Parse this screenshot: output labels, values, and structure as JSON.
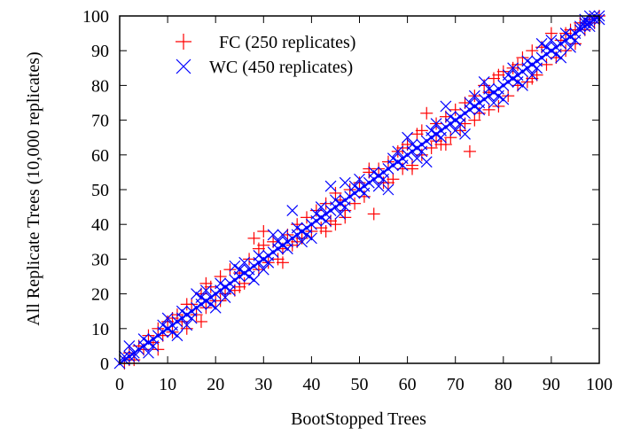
{
  "chart_data": {
    "type": "scatter",
    "title": "",
    "xlabel": "BootStopped Trees",
    "ylabel": "All Replicate Trees (10,000 replicates)",
    "xlim": [
      0,
      100
    ],
    "ylim": [
      0,
      100
    ],
    "xticks": [
      "0",
      "10",
      "20",
      "30",
      "40",
      "50",
      "60",
      "70",
      "80",
      "90",
      "100"
    ],
    "yticks": [
      "0",
      "10",
      "20",
      "30",
      "40",
      "50",
      "60",
      "70",
      "80",
      "90",
      "100"
    ],
    "grid": false,
    "legend_position": "top-left",
    "reference_line": {
      "type": "y=x",
      "color": "#00bcd4",
      "style": "dashed"
    },
    "series": [
      {
        "name": "FC (250 replicates)",
        "marker": "plus",
        "color": "#ff0000",
        "points": [
          [
            1,
            0
          ],
          [
            2,
            3
          ],
          [
            3,
            1
          ],
          [
            4,
            5
          ],
          [
            5,
            4
          ],
          [
            6,
            8
          ],
          [
            7,
            6
          ],
          [
            8,
            10
          ],
          [
            9,
            8
          ],
          [
            10,
            12
          ],
          [
            11,
            9
          ],
          [
            12,
            14
          ],
          [
            13,
            12
          ],
          [
            14,
            10
          ],
          [
            15,
            17
          ],
          [
            16,
            14
          ],
          [
            17,
            20
          ],
          [
            18,
            16
          ],
          [
            19,
            22
          ],
          [
            20,
            18
          ],
          [
            21,
            25
          ],
          [
            22,
            20
          ],
          [
            23,
            27
          ],
          [
            24,
            21
          ],
          [
            25,
            26
          ],
          [
            26,
            23
          ],
          [
            27,
            30
          ],
          [
            28,
            36
          ],
          [
            29,
            27
          ],
          [
            30,
            38
          ],
          [
            31,
            29
          ],
          [
            32,
            35
          ],
          [
            33,
            30
          ],
          [
            34,
            33
          ],
          [
            35,
            37
          ],
          [
            36,
            34
          ],
          [
            37,
            40
          ],
          [
            38,
            36
          ],
          [
            39,
            42
          ],
          [
            40,
            38
          ],
          [
            41,
            44
          ],
          [
            42,
            39
          ],
          [
            43,
            46
          ],
          [
            44,
            41
          ],
          [
            45,
            40
          ],
          [
            46,
            47
          ],
          [
            47,
            44
          ],
          [
            48,
            50
          ],
          [
            49,
            46
          ],
          [
            50,
            52
          ],
          [
            51,
            48
          ],
          [
            52,
            55
          ],
          [
            53,
            43
          ],
          [
            54,
            56
          ],
          [
            55,
            52
          ],
          [
            56,
            58
          ],
          [
            57,
            53
          ],
          [
            58,
            61
          ],
          [
            59,
            56
          ],
          [
            60,
            63
          ],
          [
            61,
            57
          ],
          [
            62,
            66
          ],
          [
            63,
            60
          ],
          [
            64,
            72
          ],
          [
            65,
            62
          ],
          [
            66,
            69
          ],
          [
            67,
            63
          ],
          [
            68,
            71
          ],
          [
            69,
            65
          ],
          [
            70,
            73
          ],
          [
            71,
            67
          ],
          [
            72,
            75
          ],
          [
            73,
            61
          ],
          [
            74,
            77
          ],
          [
            75,
            72
          ],
          [
            76,
            80
          ],
          [
            77,
            73
          ],
          [
            78,
            82
          ],
          [
            79,
            74
          ],
          [
            80,
            84
          ],
          [
            81,
            77
          ],
          [
            82,
            85
          ],
          [
            83,
            80
          ],
          [
            84,
            88
          ],
          [
            85,
            81
          ],
          [
            86,
            90
          ],
          [
            87,
            83
          ],
          [
            88,
            91
          ],
          [
            89,
            86
          ],
          [
            90,
            95
          ],
          [
            91,
            88
          ],
          [
            92,
            93
          ],
          [
            93,
            90
          ],
          [
            94,
            96
          ],
          [
            95,
            92
          ],
          [
            96,
            98
          ],
          [
            97,
            96
          ],
          [
            98,
            99
          ],
          [
            99,
            98
          ],
          [
            100,
            100
          ],
          [
            8,
            4
          ],
          [
            14,
            17
          ],
          [
            17,
            12
          ],
          [
            21,
            18
          ],
          [
            29,
            33
          ],
          [
            34,
            29
          ],
          [
            45,
            49
          ],
          [
            47,
            42
          ],
          [
            56,
            52
          ],
          [
            63,
            67
          ],
          [
            68,
            63
          ],
          [
            74,
            70
          ],
          [
            79,
            83
          ],
          [
            86,
            82
          ],
          [
            93,
            95
          ],
          [
            2,
            1
          ],
          [
            11,
            13
          ],
          [
            25,
            22
          ],
          [
            37,
            35
          ],
          [
            52,
            56
          ],
          [
            59,
            62
          ],
          [
            66,
            64
          ],
          [
            72,
            69
          ],
          [
            83,
            86
          ],
          [
            95,
            96
          ],
          [
            43,
            38
          ],
          [
            30,
            34
          ],
          [
            18,
            23
          ],
          [
            61,
            56
          ],
          [
            77,
            78
          ]
        ]
      },
      {
        "name": "WC (450 replicates)",
        "marker": "cross",
        "color": "#0000ff",
        "points": [
          [
            0,
            0
          ],
          [
            1,
            1
          ],
          [
            2,
            2
          ],
          [
            3,
            3
          ],
          [
            4,
            4
          ],
          [
            5,
            5
          ],
          [
            6,
            6
          ],
          [
            7,
            7
          ],
          [
            8,
            8
          ],
          [
            9,
            9
          ],
          [
            10,
            10
          ],
          [
            11,
            11
          ],
          [
            12,
            12
          ],
          [
            13,
            13
          ],
          [
            14,
            14
          ],
          [
            15,
            15
          ],
          [
            16,
            16
          ],
          [
            17,
            17
          ],
          [
            18,
            18
          ],
          [
            19,
            19
          ],
          [
            20,
            20
          ],
          [
            21,
            21
          ],
          [
            22,
            22
          ],
          [
            23,
            23
          ],
          [
            24,
            24
          ],
          [
            25,
            25
          ],
          [
            26,
            26
          ],
          [
            27,
            27
          ],
          [
            28,
            28
          ],
          [
            29,
            29
          ],
          [
            30,
            30
          ],
          [
            31,
            31
          ],
          [
            32,
            32
          ],
          [
            33,
            33
          ],
          [
            34,
            34
          ],
          [
            35,
            35
          ],
          [
            36,
            36
          ],
          [
            37,
            37
          ],
          [
            38,
            38
          ],
          [
            39,
            39
          ],
          [
            40,
            40
          ],
          [
            41,
            41
          ],
          [
            42,
            42
          ],
          [
            43,
            43
          ],
          [
            44,
            44
          ],
          [
            45,
            45
          ],
          [
            46,
            46
          ],
          [
            47,
            47
          ],
          [
            48,
            48
          ],
          [
            49,
            49
          ],
          [
            50,
            50
          ],
          [
            51,
            51
          ],
          [
            52,
            52
          ],
          [
            53,
            53
          ],
          [
            54,
            54
          ],
          [
            55,
            55
          ],
          [
            56,
            56
          ],
          [
            57,
            57
          ],
          [
            58,
            58
          ],
          [
            59,
            59
          ],
          [
            60,
            60
          ],
          [
            61,
            61
          ],
          [
            62,
            62
          ],
          [
            63,
            63
          ],
          [
            64,
            64
          ],
          [
            65,
            65
          ],
          [
            66,
            66
          ],
          [
            67,
            67
          ],
          [
            68,
            68
          ],
          [
            69,
            69
          ],
          [
            70,
            70
          ],
          [
            71,
            71
          ],
          [
            72,
            72
          ],
          [
            73,
            73
          ],
          [
            74,
            74
          ],
          [
            75,
            75
          ],
          [
            76,
            76
          ],
          [
            77,
            77
          ],
          [
            78,
            78
          ],
          [
            79,
            79
          ],
          [
            80,
            80
          ],
          [
            81,
            81
          ],
          [
            82,
            82
          ],
          [
            83,
            83
          ],
          [
            84,
            84
          ],
          [
            85,
            85
          ],
          [
            86,
            86
          ],
          [
            87,
            87
          ],
          [
            88,
            88
          ],
          [
            89,
            89
          ],
          [
            90,
            90
          ],
          [
            91,
            91
          ],
          [
            92,
            92
          ],
          [
            93,
            93
          ],
          [
            94,
            94
          ],
          [
            95,
            95
          ],
          [
            96,
            96
          ],
          [
            97,
            97
          ],
          [
            98,
            98
          ],
          [
            99,
            99
          ],
          [
            1,
            2
          ],
          [
            3,
            2
          ],
          [
            5,
            7
          ],
          [
            7,
            5
          ],
          [
            9,
            11
          ],
          [
            11,
            9
          ],
          [
            13,
            15
          ],
          [
            15,
            13
          ],
          [
            17,
            19
          ],
          [
            19,
            17
          ],
          [
            21,
            23
          ],
          [
            23,
            21
          ],
          [
            25,
            27
          ],
          [
            27,
            25
          ],
          [
            29,
            31
          ],
          [
            31,
            29
          ],
          [
            33,
            35
          ],
          [
            35,
            33
          ],
          [
            37,
            39
          ],
          [
            39,
            37
          ],
          [
            41,
            43
          ],
          [
            43,
            41
          ],
          [
            45,
            47
          ],
          [
            47,
            45
          ],
          [
            49,
            51
          ],
          [
            51,
            49
          ],
          [
            53,
            55
          ],
          [
            55,
            53
          ],
          [
            57,
            59
          ],
          [
            59,
            57
          ],
          [
            61,
            63
          ],
          [
            63,
            61
          ],
          [
            65,
            67
          ],
          [
            67,
            65
          ],
          [
            69,
            71
          ],
          [
            71,
            69
          ],
          [
            73,
            75
          ],
          [
            75,
            73
          ],
          [
            77,
            79
          ],
          [
            79,
            77
          ],
          [
            81,
            83
          ],
          [
            83,
            81
          ],
          [
            85,
            87
          ],
          [
            87,
            85
          ],
          [
            89,
            91
          ],
          [
            91,
            89
          ],
          [
            93,
            95
          ],
          [
            95,
            93
          ],
          [
            97,
            98
          ],
          [
            98,
            97
          ],
          [
            2,
            5
          ],
          [
            6,
            3
          ],
          [
            10,
            13
          ],
          [
            14,
            11
          ],
          [
            18,
            21
          ],
          [
            22,
            19
          ],
          [
            26,
            29
          ],
          [
            30,
            27
          ],
          [
            34,
            37
          ],
          [
            38,
            35
          ],
          [
            42,
            45
          ],
          [
            46,
            43
          ],
          [
            50,
            53
          ],
          [
            54,
            51
          ],
          [
            58,
            61
          ],
          [
            62,
            59
          ],
          [
            66,
            69
          ],
          [
            70,
            67
          ],
          [
            74,
            77
          ],
          [
            78,
            75
          ],
          [
            82,
            85
          ],
          [
            86,
            83
          ],
          [
            90,
            93
          ],
          [
            94,
            91
          ],
          [
            44,
            51
          ],
          [
            47,
            52
          ],
          [
            56,
            50
          ],
          [
            36,
            44
          ],
          [
            40,
            36
          ],
          [
            60,
            65
          ],
          [
            64,
            58
          ],
          [
            68,
            74
          ],
          [
            72,
            66
          ],
          [
            76,
            81
          ],
          [
            80,
            76
          ],
          [
            84,
            80
          ],
          [
            88,
            92
          ],
          [
            92,
            88
          ],
          [
            96,
            97
          ],
          [
            99,
            100
          ],
          [
            100,
            99
          ],
          [
            100,
            100
          ],
          [
            98,
            100
          ],
          [
            97,
            99
          ],
          [
            28,
            24
          ],
          [
            32,
            37
          ],
          [
            24,
            28
          ],
          [
            20,
            16
          ],
          [
            16,
            20
          ],
          [
            12,
            8
          ]
        ]
      }
    ]
  }
}
